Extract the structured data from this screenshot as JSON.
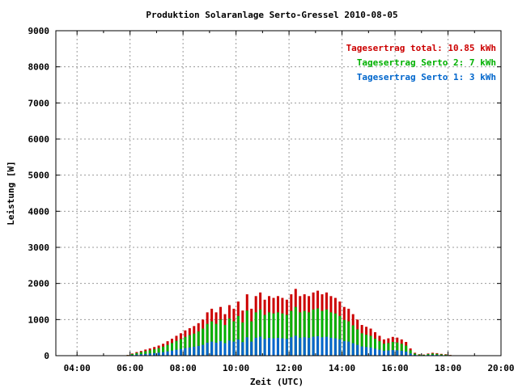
{
  "chart_data": {
    "type": "bar",
    "title": "Produktion Solaranlage Serto-Gressel 2010-08-05",
    "xlabel": "Zeit (UTC)",
    "ylabel": "Leistung [W]",
    "ylim": [
      0,
      9000
    ],
    "xlim_hours": [
      3.2,
      20.0
    ],
    "yticks": [
      "0",
      "1000",
      "2000",
      "3000",
      "4000",
      "5000",
      "6000",
      "7000",
      "8000",
      "9000"
    ],
    "xticks": [
      "04:00",
      "06:00",
      "08:00",
      "10:00",
      "12:00",
      "14:00",
      "16:00",
      "18:00",
      "20:00"
    ],
    "grid": true,
    "legend_position": "top-right",
    "legend": [
      {
        "name": "Tagesertrag total: 10.85 kWh",
        "color": "#cc0000"
      },
      {
        "name": "Tagesertrag Serto 2: 7 kWh",
        "color": "#00b000"
      },
      {
        "name": "Tagesertrag Serto 1: 3 kWh",
        "color": "#0066cc"
      }
    ],
    "series": [
      {
        "name": "total",
        "color": "#cc0000",
        "x": [
          "05:55",
          "06:05",
          "06:15",
          "06:25",
          "06:35",
          "06:45",
          "06:55",
          "07:05",
          "07:15",
          "07:25",
          "07:35",
          "07:45",
          "07:55",
          "08:05",
          "08:15",
          "08:25",
          "08:35",
          "08:45",
          "08:55",
          "09:05",
          "09:15",
          "09:25",
          "09:35",
          "09:45",
          "09:55",
          "10:05",
          "10:15",
          "10:25",
          "10:35",
          "10:45",
          "10:55",
          "11:05",
          "11:15",
          "11:25",
          "11:35",
          "11:45",
          "11:55",
          "12:05",
          "12:15",
          "12:25",
          "12:35",
          "12:45",
          "12:55",
          "13:05",
          "13:15",
          "13:25",
          "13:35",
          "13:45",
          "13:55",
          "14:05",
          "14:15",
          "14:25",
          "14:35",
          "14:45",
          "14:55",
          "15:05",
          "15:15",
          "15:25",
          "15:35",
          "15:45",
          "15:55",
          "16:05",
          "16:15",
          "16:25",
          "16:35",
          "16:45",
          "16:55",
          "17:05",
          "17:15",
          "17:25",
          "17:35",
          "17:45",
          "17:55",
          "18:05",
          "18:15"
        ],
        "values": [
          20,
          60,
          100,
          130,
          170,
          200,
          240,
          280,
          330,
          400,
          470,
          550,
          620,
          700,
          760,
          820,
          900,
          1000,
          1200,
          1300,
          1200,
          1350,
          1150,
          1400,
          1300,
          1500,
          1250,
          1700,
          1300,
          1650,
          1750,
          1550,
          1650,
          1600,
          1650,
          1600,
          1550,
          1700,
          1850,
          1650,
          1700,
          1650,
          1750,
          1800,
          1700,
          1750,
          1650,
          1600,
          1500,
          1350,
          1300,
          1150,
          1000,
          850,
          800,
          750,
          650,
          550,
          450,
          480,
          520,
          500,
          450,
          380,
          200,
          80,
          40,
          30,
          60,
          80,
          70,
          50,
          40,
          20,
          10
        ]
      },
      {
        "name": "Serto 2",
        "color": "#00b000",
        "values": [
          15,
          45,
          75,
          100,
          125,
          150,
          180,
          210,
          250,
          300,
          350,
          410,
          460,
          520,
          570,
          610,
          670,
          750,
          880,
          950,
          880,
          1000,
          850,
          1030,
          950,
          1100,
          920,
          1250,
          950,
          1200,
          1280,
          1130,
          1200,
          1170,
          1200,
          1170,
          1130,
          1240,
          1350,
          1200,
          1240,
          1200,
          1280,
          1310,
          1240,
          1280,
          1200,
          1170,
          1100,
          990,
          950,
          840,
          730,
          620,
          580,
          550,
          470,
          400,
          330,
          350,
          380,
          365,
          330,
          280,
          150,
          60,
          30,
          22,
          45,
          58,
          50,
          36,
          28,
          14,
          7
        ]
      },
      {
        "name": "Serto 1",
        "color": "#0066cc",
        "values": [
          6,
          18,
          30,
          40,
          50,
          60,
          72,
          84,
          99,
          120,
          141,
          165,
          186,
          210,
          228,
          246,
          270,
          300,
          360,
          390,
          360,
          405,
          345,
          420,
          390,
          450,
          375,
          510,
          390,
          495,
          525,
          465,
          495,
          480,
          495,
          480,
          465,
          510,
          555,
          495,
          510,
          495,
          525,
          540,
          510,
          525,
          495,
          480,
          450,
          405,
          390,
          345,
          300,
          255,
          240,
          225,
          195,
          165,
          135,
          144,
          156,
          150,
          135,
          114,
          60,
          24,
          12,
          9,
          18,
          24,
          21,
          15,
          12,
          6,
          3
        ]
      }
    ]
  }
}
